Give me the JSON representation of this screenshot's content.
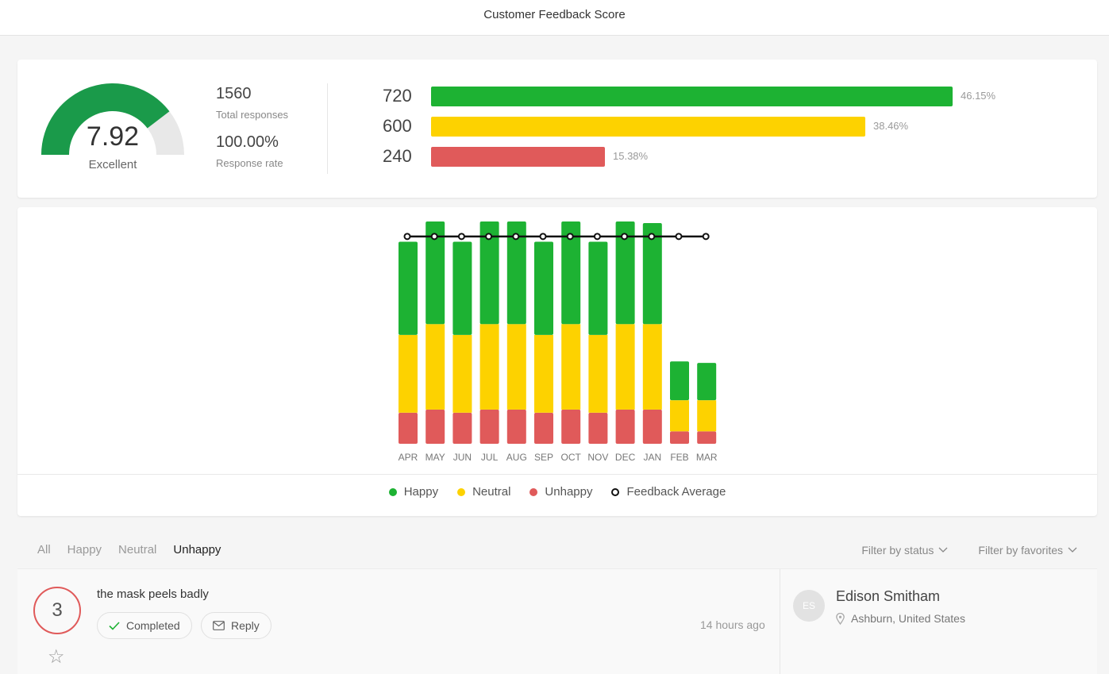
{
  "header": {
    "title": "Customer Feedback Score"
  },
  "summary": {
    "score": "7.92",
    "score_fraction": 0.792,
    "score_label": "Excellent",
    "total_responses": "1560",
    "total_responses_label": "Total responses",
    "response_rate": "100.00%",
    "response_rate_label": "Response rate",
    "breakdown": [
      {
        "name": "happy",
        "count": "720",
        "percent": "46.15%",
        "fraction": 0.4615,
        "color": "#1db233"
      },
      {
        "name": "neutral",
        "count": "600",
        "percent": "38.46%",
        "fraction": 0.3846,
        "color": "#fdd200"
      },
      {
        "name": "unhappy",
        "count": "240",
        "percent": "15.38%",
        "fraction": 0.1538,
        "color": "#e05a5a"
      }
    ]
  },
  "chart_data": {
    "type": "bar",
    "stacked": true,
    "categories": [
      "APR",
      "MAY",
      "JUN",
      "JUL",
      "AUG",
      "SEP",
      "OCT",
      "NOV",
      "DEC",
      "JAN",
      "FEB",
      "MAR"
    ],
    "series": [
      {
        "name": "Unhappy",
        "color": "#e05a5a",
        "values": [
          20,
          22,
          20,
          22,
          22,
          20,
          22,
          20,
          22,
          22,
          8,
          8
        ]
      },
      {
        "name": "Neutral",
        "color": "#fdd200",
        "values": [
          50,
          55,
          50,
          55,
          55,
          50,
          55,
          50,
          55,
          55,
          20,
          20
        ]
      },
      {
        "name": "Happy",
        "color": "#1db233",
        "values": [
          60,
          66,
          60,
          66,
          66,
          60,
          66,
          60,
          66,
          65,
          25,
          24
        ]
      }
    ],
    "line": {
      "name": "Feedback Average",
      "color": "#111111",
      "values": [
        7.92,
        7.92,
        7.92,
        7.92,
        7.92,
        7.92,
        7.92,
        7.92,
        7.92,
        7.92,
        7.92,
        7.92
      ]
    },
    "ylim": [
      0,
      143
    ],
    "grid": false,
    "legend_position": "bottom"
  },
  "legend": {
    "happy": "Happy",
    "neutral": "Neutral",
    "unhappy": "Unhappy",
    "average": "Feedback Average"
  },
  "tabs": [
    {
      "label": "All",
      "active": false
    },
    {
      "label": "Happy",
      "active": false
    },
    {
      "label": "Neutral",
      "active": false
    },
    {
      "label": "Unhappy",
      "active": true
    }
  ],
  "filters": {
    "status": "Filter by status",
    "favorites": "Filter by favorites"
  },
  "feedback": {
    "score": "3",
    "text": "the mask peels badly",
    "completed_label": "Completed",
    "reply_label": "Reply",
    "time": "14 hours ago",
    "initials": "ES",
    "name": "Edison Smitham",
    "location": "Ashburn, United States"
  }
}
